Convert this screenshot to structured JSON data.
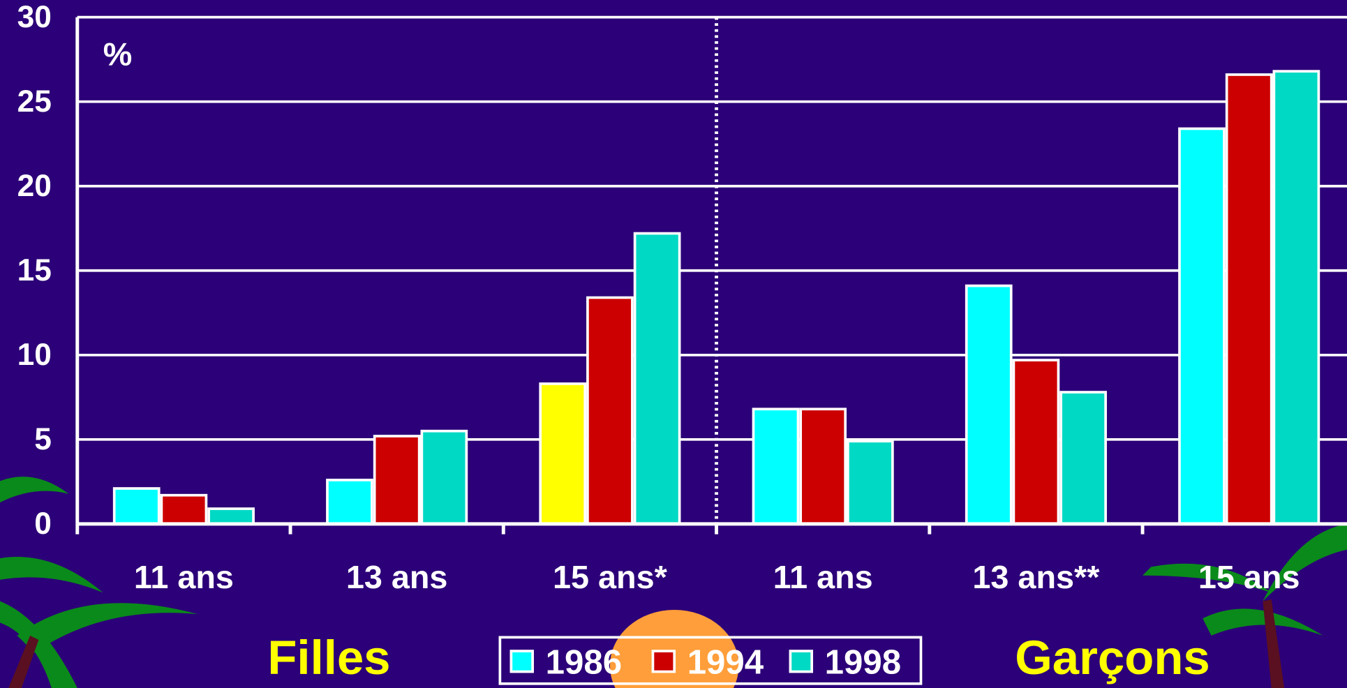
{
  "chart_data": {
    "type": "bar",
    "y_unit_label": "%",
    "categories": [
      "11 ans",
      "13 ans",
      "15 ans*",
      "11 ans",
      "13 ans**",
      "15 ans"
    ],
    "group_labels": [
      "Filles",
      "Garçons"
    ],
    "series": [
      {
        "name": "1986",
        "color": "#00ffff",
        "colors": [
          "#00ffff",
          "#00ffff",
          "#ffff00",
          "#00ffff",
          "#00ffff",
          "#00ffff"
        ],
        "values": [
          2.1,
          2.6,
          8.3,
          6.8,
          14.1,
          23.4
        ]
      },
      {
        "name": "1994",
        "color": "#cc0000",
        "values": [
          1.7,
          5.2,
          13.4,
          6.8,
          9.7,
          26.6
        ]
      },
      {
        "name": "1998",
        "color": "#00d9c4",
        "values": [
          0.9,
          5.5,
          17.2,
          4.9,
          7.8,
          26.8
        ]
      }
    ],
    "ylim": [
      0,
      30
    ],
    "yticks": [
      0,
      5,
      10,
      15,
      20,
      25,
      30
    ],
    "grid": true
  }
}
